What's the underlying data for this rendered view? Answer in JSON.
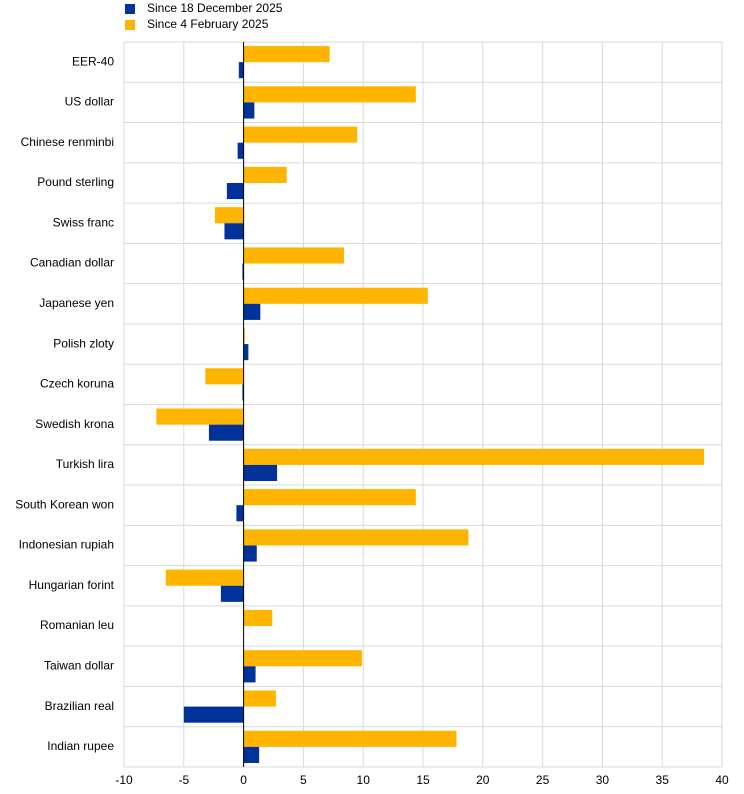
{
  "chart_data": {
    "type": "hbar",
    "categories": [
      "EER-40",
      "US dollar",
      "Chinese renminbi",
      "Pound sterling",
      "Swiss franc",
      "Canadian dollar",
      "Japanese yen",
      "Polish zloty",
      "Czech koruna",
      "Swedish krona",
      "Turkish lira",
      "South Korean won",
      "Indonesian rupiah",
      "Hungarian forint",
      "Romanian leu",
      "Taiwan dollar",
      "Brazilian real",
      "Indian rupee"
    ],
    "series": [
      {
        "name": "Since 18 December 2025",
        "color": "#003299",
        "values": [
          -0.4,
          0.9,
          -0.5,
          -1.4,
          -1.6,
          -0.1,
          1.4,
          0.4,
          -0.1,
          -2.9,
          2.8,
          -0.6,
          1.1,
          -1.9,
          0,
          1.0,
          -5.0,
          1.3
        ]
      },
      {
        "name": "Since 4 February 2025",
        "color": "#ffb400",
        "values": [
          7.2,
          14.4,
          9.5,
          3.6,
          -2.4,
          8.4,
          15.4,
          0.1,
          -3.2,
          -7.3,
          38.5,
          14.4,
          18.8,
          -6.5,
          2.4,
          9.9,
          2.7,
          17.8
        ]
      }
    ],
    "xlim": [
      -10,
      40
    ],
    "xticks": [
      -10,
      -5,
      0,
      5,
      10,
      15,
      20,
      25,
      30,
      35,
      40
    ],
    "grid": true,
    "legend": "top-left"
  }
}
